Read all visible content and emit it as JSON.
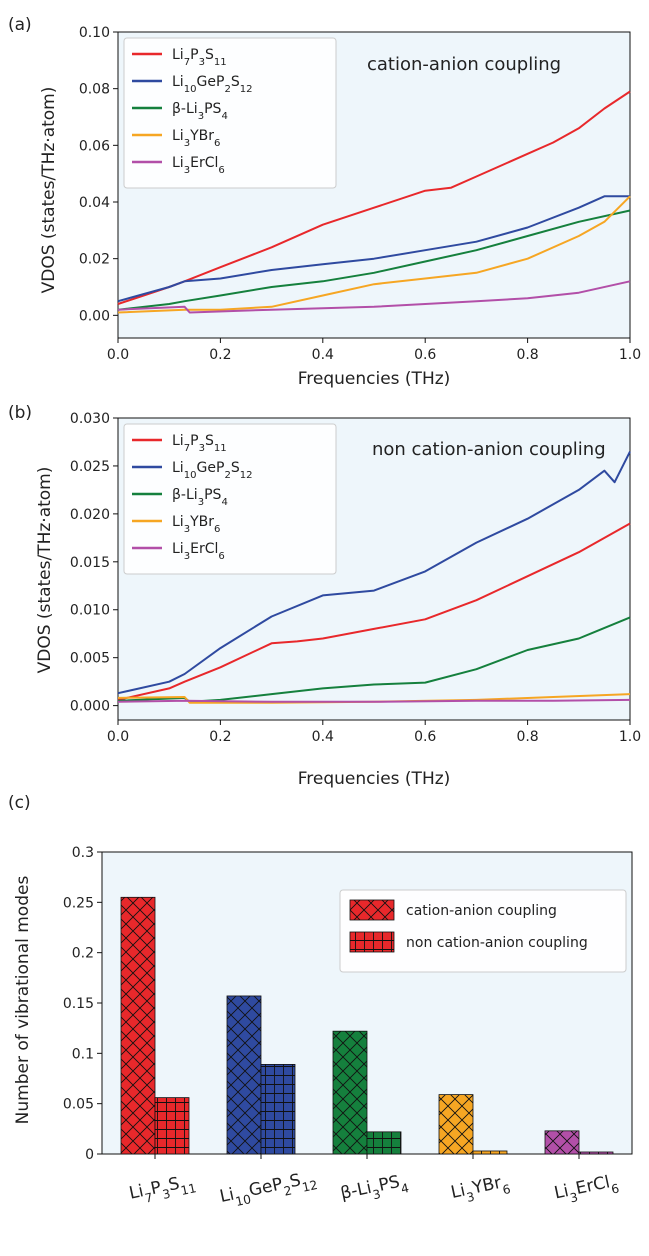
{
  "chart_data": [
    {
      "type": "line",
      "panel_label": "(a)",
      "annotation": "cation-anion coupling",
      "xlabel": "Frequencies (THz)",
      "ylabel": "VDOS (states/THz·atom)",
      "xlim": [
        0,
        1
      ],
      "ylim": [
        -0.008,
        0.1
      ],
      "xticks": [
        "0.0",
        "0.2",
        "0.4",
        "0.6",
        "0.8",
        "1.0"
      ],
      "yticks": [
        "0.00",
        "0.02",
        "0.04",
        "0.06",
        "0.08",
        "0.10"
      ],
      "legend_position": "upper-left",
      "series": [
        {
          "name": "Li7P3S11",
          "color": "#e8282b",
          "points": [
            [
              0,
              0.004
            ],
            [
              0.1,
              0.01
            ],
            [
              0.13,
              0.012
            ],
            [
              0.2,
              0.017
            ],
            [
              0.3,
              0.024
            ],
            [
              0.4,
              0.032
            ],
            [
              0.5,
              0.038
            ],
            [
              0.6,
              0.044
            ],
            [
              0.65,
              0.045
            ],
            [
              0.7,
              0.049
            ],
            [
              0.8,
              0.057
            ],
            [
              0.85,
              0.061
            ],
            [
              0.9,
              0.066
            ],
            [
              0.95,
              0.073
            ],
            [
              1.0,
              0.079
            ]
          ]
        },
        {
          "name": "Li10GeP2S12",
          "color": "#2f4aa0",
          "points": [
            [
              0,
              0.005
            ],
            [
              0.1,
              0.01
            ],
            [
              0.13,
              0.012
            ],
            [
              0.2,
              0.013
            ],
            [
              0.3,
              0.016
            ],
            [
              0.4,
              0.018
            ],
            [
              0.5,
              0.02
            ],
            [
              0.6,
              0.023
            ],
            [
              0.7,
              0.026
            ],
            [
              0.8,
              0.031
            ],
            [
              0.9,
              0.038
            ],
            [
              0.95,
              0.042
            ],
            [
              1.0,
              0.042
            ]
          ]
        },
        {
          "name": "β-Li3PS4",
          "color": "#15803d",
          "points": [
            [
              0,
              0.002
            ],
            [
              0.1,
              0.004
            ],
            [
              0.13,
              0.005
            ],
            [
              0.2,
              0.007
            ],
            [
              0.3,
              0.01
            ],
            [
              0.4,
              0.012
            ],
            [
              0.5,
              0.015
            ],
            [
              0.6,
              0.019
            ],
            [
              0.7,
              0.023
            ],
            [
              0.8,
              0.028
            ],
            [
              0.9,
              0.033
            ],
            [
              1.0,
              0.037
            ]
          ]
        },
        {
          "name": "Li3YBr6",
          "color": "#f6a623",
          "points": [
            [
              0,
              0.001
            ],
            [
              0.13,
              0.002
            ],
            [
              0.2,
              0.002
            ],
            [
              0.3,
              0.003
            ],
            [
              0.4,
              0.007
            ],
            [
              0.5,
              0.011
            ],
            [
              0.6,
              0.013
            ],
            [
              0.7,
              0.015
            ],
            [
              0.8,
              0.02
            ],
            [
              0.9,
              0.028
            ],
            [
              0.95,
              0.033
            ],
            [
              1.0,
              0.042
            ]
          ]
        },
        {
          "name": "Li3ErCl6",
          "color": "#b24fa8",
          "points": [
            [
              0,
              0.002
            ],
            [
              0.13,
              0.003
            ],
            [
              0.14,
              0.001
            ],
            [
              0.3,
              0.002
            ],
            [
              0.5,
              0.003
            ],
            [
              0.7,
              0.005
            ],
            [
              0.8,
              0.006
            ],
            [
              0.9,
              0.008
            ],
            [
              1.0,
              0.012
            ]
          ]
        }
      ]
    },
    {
      "type": "line",
      "panel_label": "(b)",
      "annotation": "non cation-anion coupling",
      "xlabel": "Frequencies (THz)",
      "ylabel": "VDOS (states/THz·atom)",
      "xlim": [
        0,
        1
      ],
      "ylim": [
        -0.0015,
        0.03
      ],
      "xticks": [
        "0.0",
        "0.2",
        "0.4",
        "0.6",
        "0.8",
        "1.0"
      ],
      "yticks": [
        "0.000",
        "0.005",
        "0.010",
        "0.015",
        "0.020",
        "0.025",
        "0.030"
      ],
      "legend_position": "upper-left",
      "series": [
        {
          "name": "Li7P3S11",
          "color": "#e8282b",
          "points": [
            [
              0,
              0.0006
            ],
            [
              0.1,
              0.0018
            ],
            [
              0.13,
              0.0025
            ],
            [
              0.2,
              0.004
            ],
            [
              0.3,
              0.0065
            ],
            [
              0.35,
              0.0067
            ],
            [
              0.4,
              0.007
            ],
            [
              0.5,
              0.008
            ],
            [
              0.6,
              0.009
            ],
            [
              0.7,
              0.011
            ],
            [
              0.8,
              0.0135
            ],
            [
              0.9,
              0.016
            ],
            [
              1.0,
              0.019
            ]
          ]
        },
        {
          "name": "Li10GeP2S12",
          "color": "#2f4aa0",
          "points": [
            [
              0,
              0.0013
            ],
            [
              0.1,
              0.0025
            ],
            [
              0.13,
              0.0033
            ],
            [
              0.2,
              0.006
            ],
            [
              0.3,
              0.0093
            ],
            [
              0.4,
              0.0115
            ],
            [
              0.5,
              0.012
            ],
            [
              0.6,
              0.014
            ],
            [
              0.7,
              0.017
            ],
            [
              0.8,
              0.0195
            ],
            [
              0.9,
              0.0225
            ],
            [
              0.95,
              0.0245
            ],
            [
              0.97,
              0.0233
            ],
            [
              1.0,
              0.0265
            ]
          ]
        },
        {
          "name": "β-Li3PS4",
          "color": "#15803d",
          "points": [
            [
              0,
              0.0005
            ],
            [
              0.13,
              0.0008
            ],
            [
              0.14,
              0.0004
            ],
            [
              0.2,
              0.0006
            ],
            [
              0.3,
              0.0012
            ],
            [
              0.4,
              0.0018
            ],
            [
              0.5,
              0.0022
            ],
            [
              0.6,
              0.0024
            ],
            [
              0.7,
              0.0038
            ],
            [
              0.8,
              0.0058
            ],
            [
              0.9,
              0.007
            ],
            [
              1.0,
              0.0092
            ]
          ]
        },
        {
          "name": "Li3YBr6",
          "color": "#f6a623",
          "points": [
            [
              0,
              0.0008
            ],
            [
              0.13,
              0.0009
            ],
            [
              0.14,
              0.0003
            ],
            [
              0.3,
              0.0003
            ],
            [
              0.5,
              0.0004
            ],
            [
              0.7,
              0.0006
            ],
            [
              0.85,
              0.0009
            ],
            [
              1.0,
              0.0012
            ]
          ]
        },
        {
          "name": "Li3ErCl6",
          "color": "#b24fa8",
          "points": [
            [
              0,
              0.0004
            ],
            [
              0.13,
              0.0005
            ],
            [
              0.3,
              0.0004
            ],
            [
              0.5,
              0.0004
            ],
            [
              0.7,
              0.0005
            ],
            [
              0.85,
              0.0005
            ],
            [
              1.0,
              0.0006
            ]
          ]
        }
      ]
    },
    {
      "type": "bar",
      "panel_label": "(c)",
      "ylabel": "Number of vibrational modes",
      "ylim": [
        0,
        0.3
      ],
      "yticks": [
        "0",
        "0.05",
        "0.1",
        "0.15",
        "0.2",
        "0.25",
        "0.3"
      ],
      "legend_position": "upper-right",
      "categories": [
        "Li7P3S11",
        "Li10GeP2S12",
        "β-Li3PS4",
        "Li3YBr6",
        "Li3ErCl6"
      ],
      "category_colors": [
        "#e8282b",
        "#2f4aa0",
        "#15803d",
        "#f6a623",
        "#b24fa8"
      ],
      "series": [
        {
          "name": "cation-anion coupling",
          "hatch": "cross",
          "values": [
            0.255,
            0.157,
            0.122,
            0.059,
            0.023
          ]
        },
        {
          "name": "non cation-anion coupling",
          "hatch": "grid",
          "values": [
            0.056,
            0.089,
            0.022,
            0.003,
            0.002
          ]
        }
      ]
    }
  ]
}
